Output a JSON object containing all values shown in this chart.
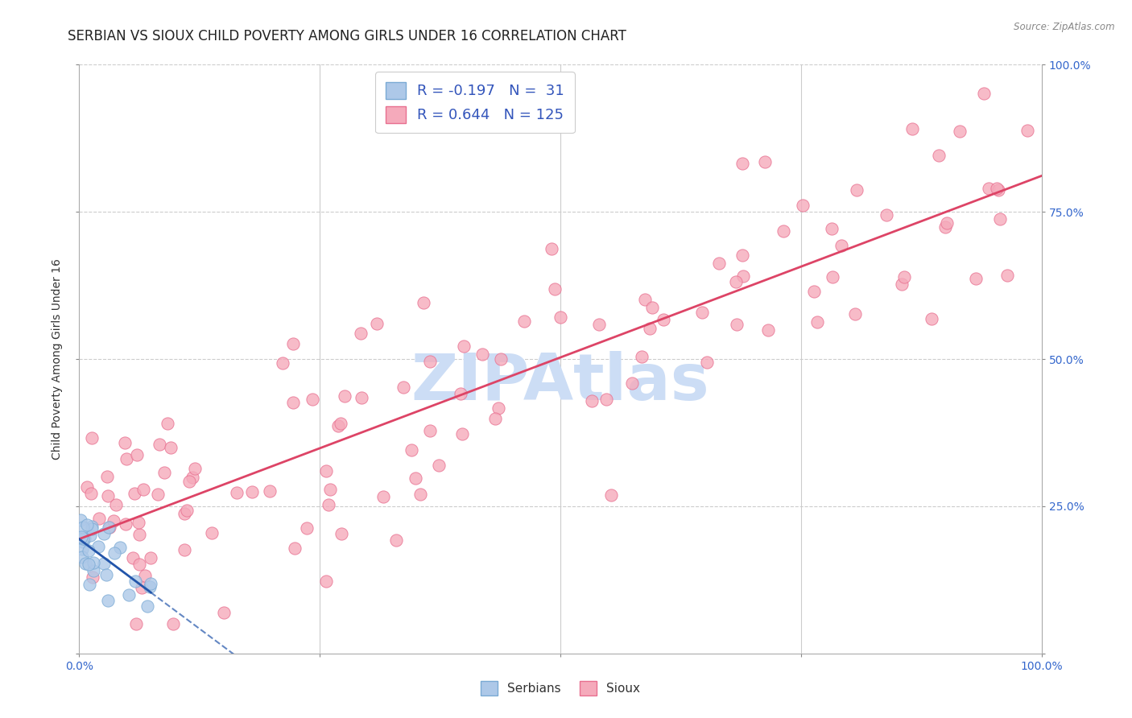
{
  "title": "SERBIAN VS SIOUX CHILD POVERTY AMONG GIRLS UNDER 16 CORRELATION CHART",
  "source": "Source: ZipAtlas.com",
  "ylabel": "Child Poverty Among Girls Under 16",
  "x_tick_labels": [
    "0.0%",
    "",
    "",
    "",
    "100.0%"
  ],
  "y_tick_labels_right": [
    "",
    "25.0%",
    "50.0%",
    "75.0%",
    "100.0%"
  ],
  "serbian_color": "#adc8e8",
  "serbian_edge_color": "#7aaad4",
  "sioux_color": "#f5aabb",
  "sioux_edge_color": "#e87090",
  "serbian_R": -0.197,
  "serbian_N": 31,
  "sioux_R": 0.644,
  "sioux_N": 125,
  "legend_color": "#3355bb",
  "regression_serbian_color": "#2255aa",
  "regression_sioux_color": "#dd4466",
  "grid_color": "#cccccc",
  "watermark_color": "#ccddf5",
  "title_fontsize": 12,
  "axis_label_fontsize": 10,
  "tick_label_fontsize": 10,
  "scatter_size": 120
}
